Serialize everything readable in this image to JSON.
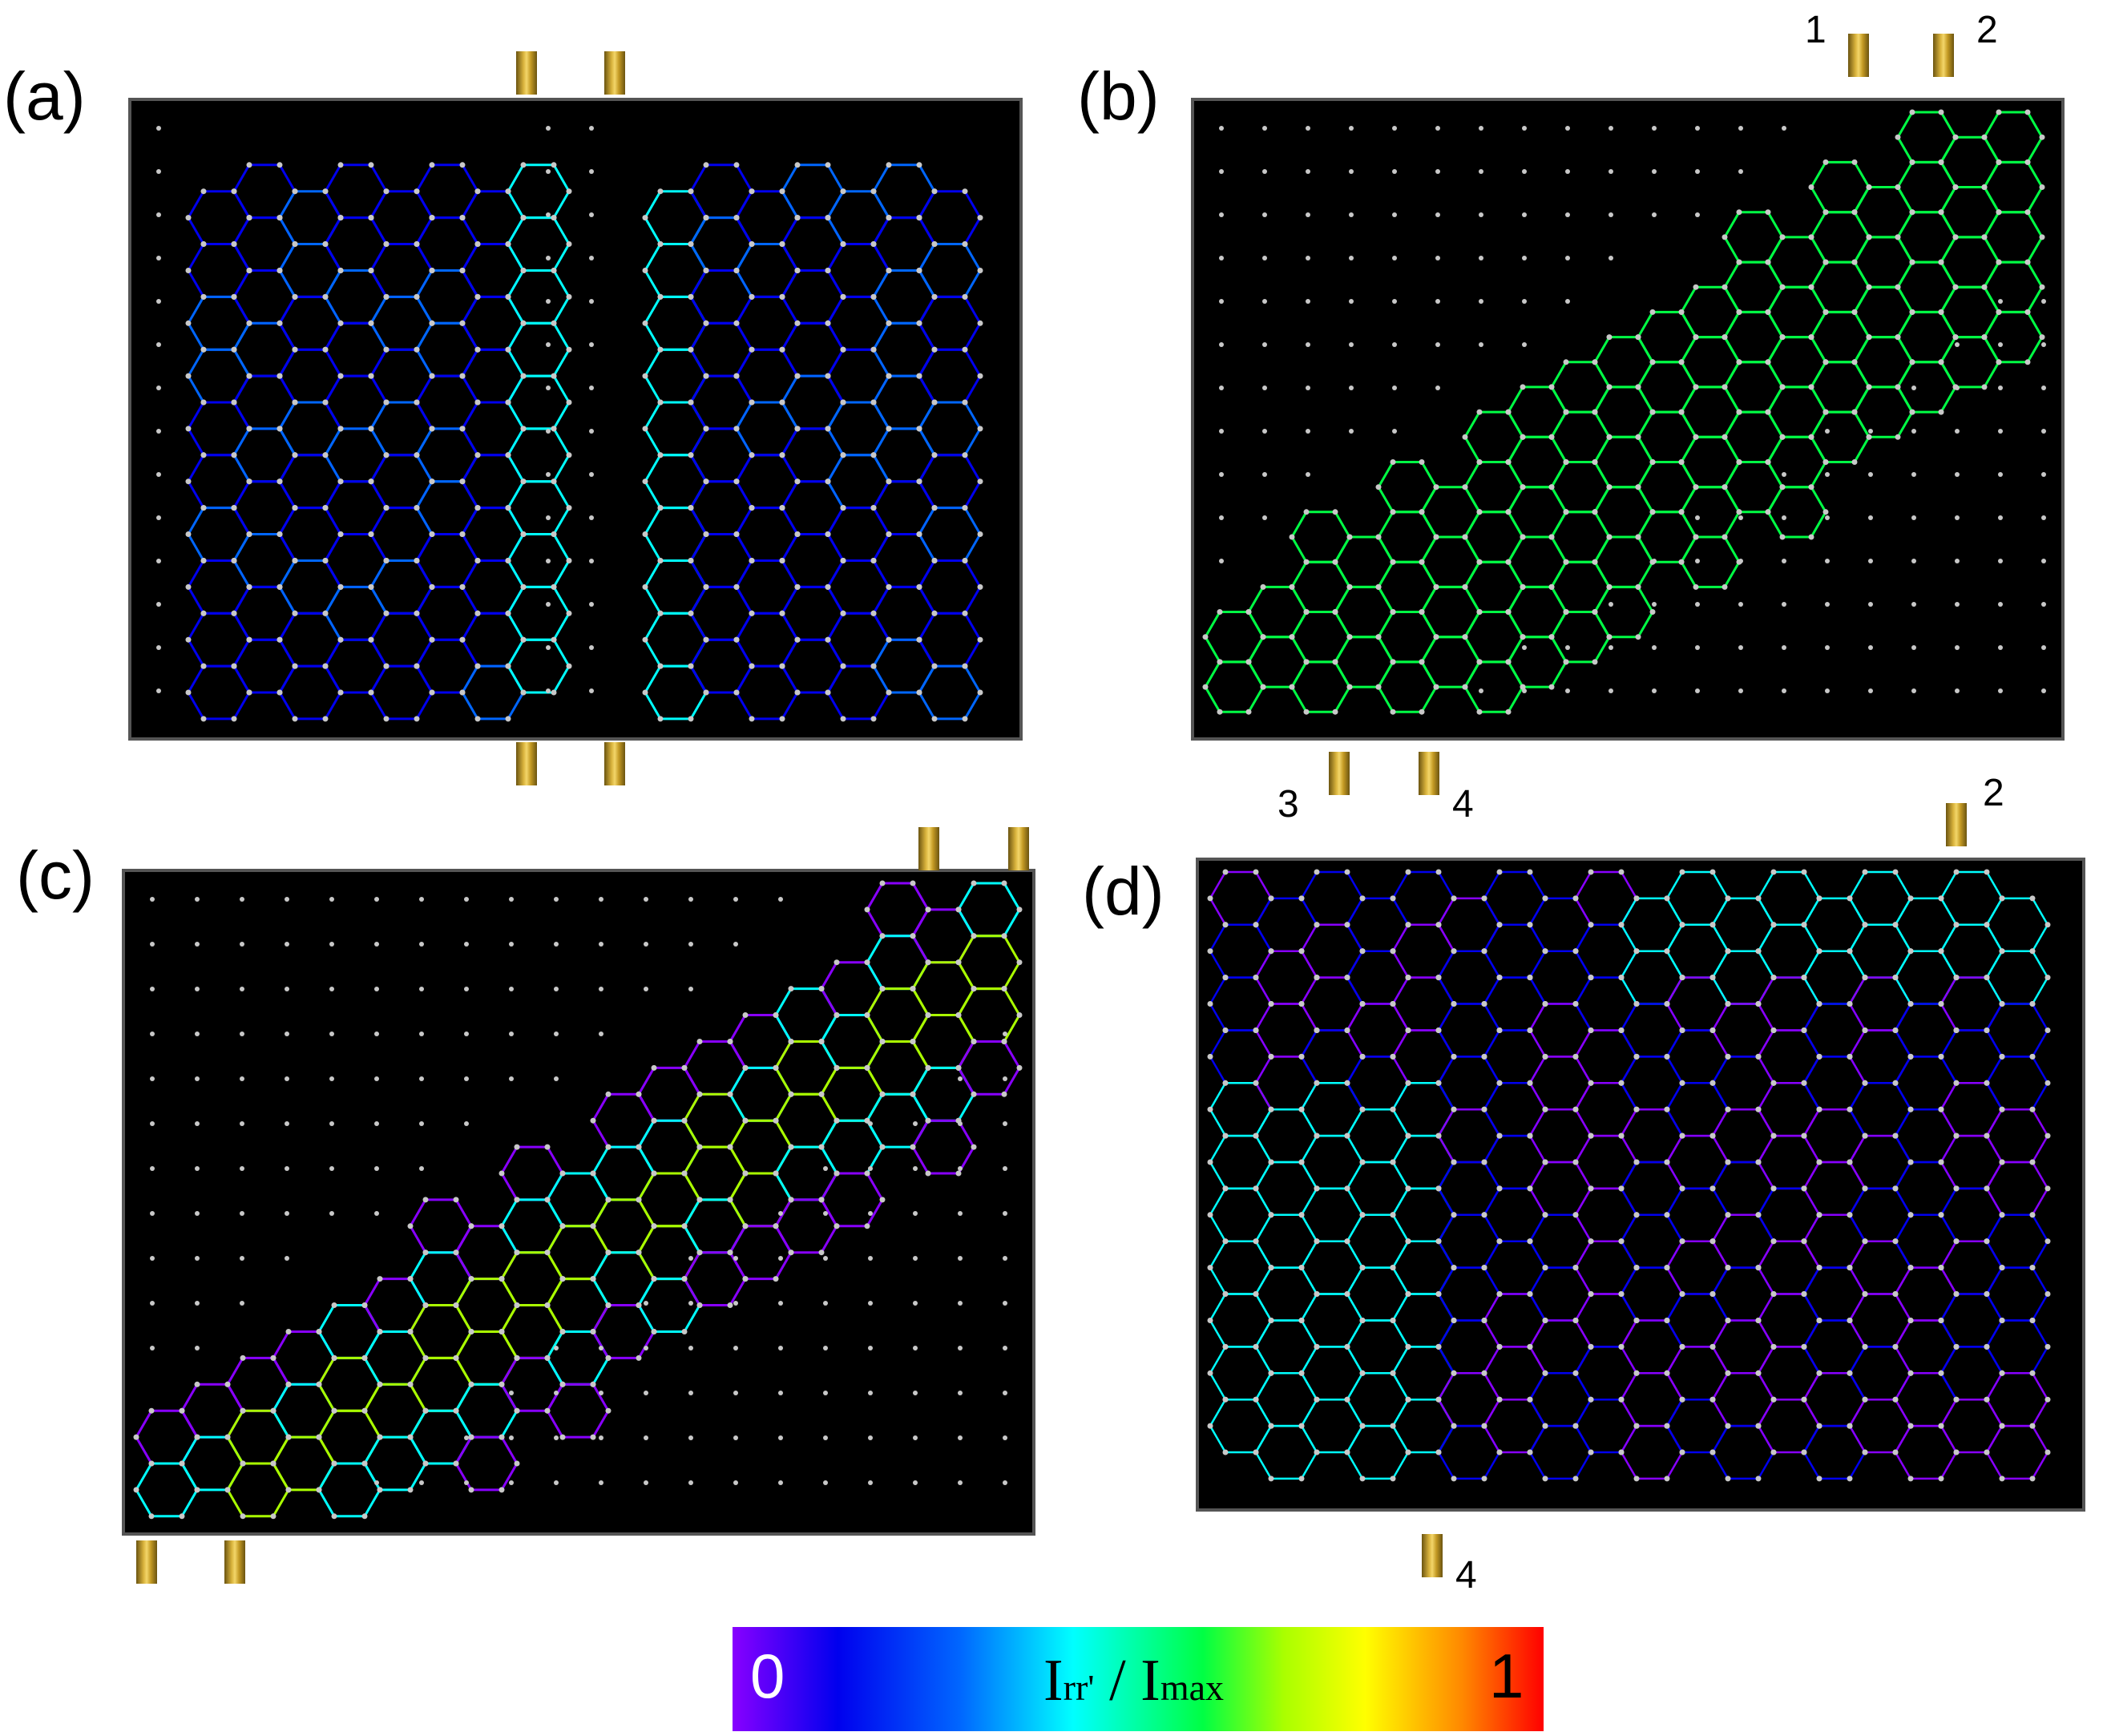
{
  "panels": [
    {
      "id": "a",
      "label": "(a)",
      "terminals": [
        {
          "name": ""
        },
        {
          "name": ""
        },
        {
          "name": ""
        },
        {
          "name": ""
        }
      ]
    },
    {
      "id": "b",
      "label": "(b)",
      "terminals": [
        {
          "name": "1"
        },
        {
          "name": "2"
        },
        {
          "name": "3"
        },
        {
          "name": "4"
        }
      ]
    },
    {
      "id": "c",
      "label": "(c)",
      "terminals": [
        {
          "name": ""
        },
        {
          "name": ""
        },
        {
          "name": ""
        },
        {
          "name": ""
        }
      ]
    },
    {
      "id": "d",
      "label": "(d)",
      "terminals": [
        {
          "name": "2"
        },
        {
          "name": "4"
        }
      ]
    }
  ],
  "colorbar": {
    "min_label": "0",
    "max_label": "1",
    "quantity_main": "I",
    "quantity_sub": "rr'",
    "separator": " / ",
    "denominator_main": "I",
    "denominator_sub": "max"
  },
  "colors": {
    "background": "#000000",
    "site": "#c8c8c8",
    "lead": "#d4af37",
    "scale": [
      "#8800ff",
      "#0000ee",
      "#0066ff",
      "#00ffff",
      "#00ff44",
      "#aaff00",
      "#ffff00",
      "#ff8800",
      "#ff0000"
    ]
  }
}
